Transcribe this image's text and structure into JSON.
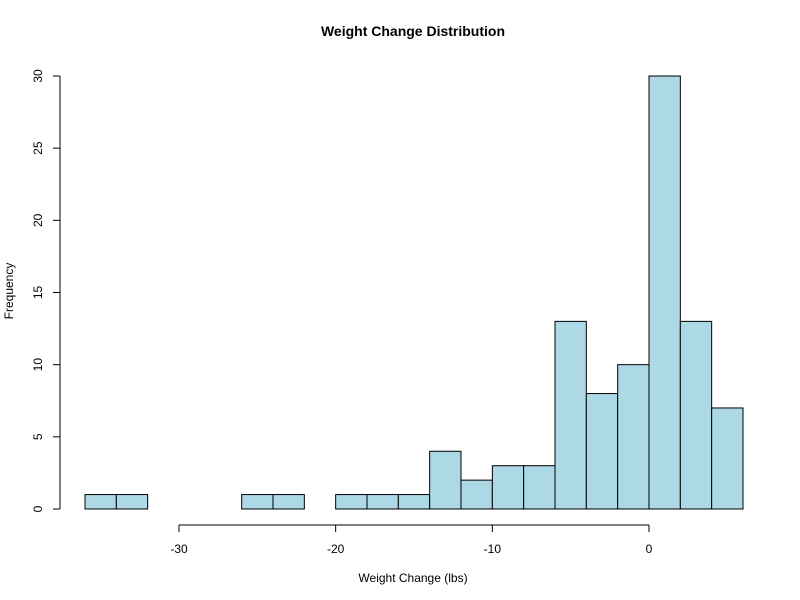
{
  "chart_data": {
    "type": "bar",
    "title": "Weight Change Distribution",
    "xlabel": "Weight Change (lbs)",
    "ylabel": "Frequency",
    "bar_color": "#add8e6",
    "bin_width": 2,
    "xlim": [
      -36,
      6
    ],
    "ylim": [
      0,
      30
    ],
    "x_ticks": [
      -30,
      -20,
      -10,
      0
    ],
    "y_ticks": [
      0,
      5,
      10,
      15,
      20,
      25,
      30
    ],
    "bins": [
      {
        "x0": -36,
        "x1": -34,
        "count": 1
      },
      {
        "x0": -34,
        "x1": -32,
        "count": 1
      },
      {
        "x0": -32,
        "x1": -30,
        "count": 0
      },
      {
        "x0": -30,
        "x1": -28,
        "count": 0
      },
      {
        "x0": -28,
        "x1": -26,
        "count": 0
      },
      {
        "x0": -26,
        "x1": -24,
        "count": 1
      },
      {
        "x0": -24,
        "x1": -22,
        "count": 1
      },
      {
        "x0": -22,
        "x1": -20,
        "count": 0
      },
      {
        "x0": -20,
        "x1": -18,
        "count": 1
      },
      {
        "x0": -18,
        "x1": -16,
        "count": 1
      },
      {
        "x0": -16,
        "x1": -14,
        "count": 1
      },
      {
        "x0": -14,
        "x1": -12,
        "count": 4
      },
      {
        "x0": -12,
        "x1": -10,
        "count": 2
      },
      {
        "x0": -10,
        "x1": -8,
        "count": 3
      },
      {
        "x0": -8,
        "x1": -6,
        "count": 3
      },
      {
        "x0": -6,
        "x1": -4,
        "count": 13
      },
      {
        "x0": -4,
        "x1": -2,
        "count": 8
      },
      {
        "x0": -2,
        "x1": 0,
        "count": 10
      },
      {
        "x0": 0,
        "x1": 2,
        "count": 30
      },
      {
        "x0": 2,
        "x1": 4,
        "count": 13
      },
      {
        "x0": 4,
        "x1": 6,
        "count": 7
      }
    ]
  }
}
